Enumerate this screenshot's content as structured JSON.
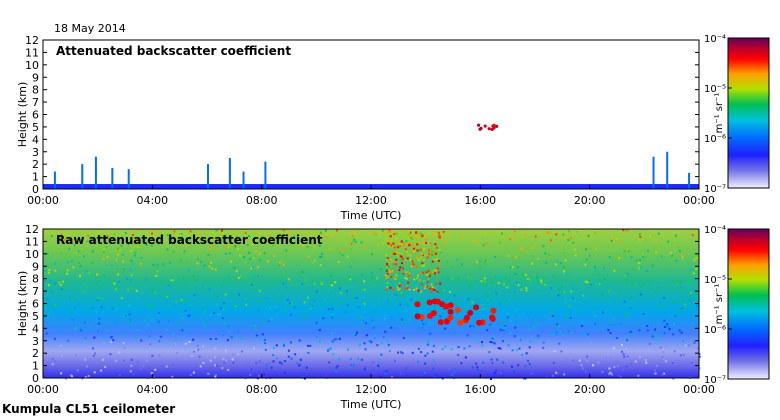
{
  "date": "18 May 2014",
  "footer": "Kumpula CL51 ceilometer",
  "chart_data": [
    {
      "type": "heatmap",
      "title": "Attenuated backscatter coefficient",
      "xlabel": "Time (UTC)",
      "ylabel": "Height (km)",
      "xticks": [
        "00:00",
        "04:00",
        "08:00",
        "12:00",
        "16:00",
        "20:00",
        "00:00"
      ],
      "xlim_hours": [
        0,
        24
      ],
      "yticks": [
        "0",
        "1",
        "2",
        "3",
        "4",
        "5",
        "6",
        "7",
        "8",
        "9",
        "10",
        "11",
        "12"
      ],
      "ylim_km": [
        0,
        12
      ],
      "colorbar": {
        "label": "m⁻¹ sr⁻¹",
        "ticks": [
          "10⁻⁷",
          "10⁻⁶",
          "10⁻⁵",
          "10⁻⁴"
        ],
        "range_log10": [
          -7,
          -4
        ]
      },
      "features": [
        {
          "name": "boundary layer",
          "start_h": 0,
          "end_h": 24,
          "top_km": 0.4,
          "level_log10": -6.3
        },
        {
          "name": "cloud",
          "start_h": 15.8,
          "end_h": 16.6,
          "bottom_km": 4.7,
          "top_km": 5.2,
          "level_log10": -4.3
        }
      ]
    },
    {
      "type": "heatmap",
      "title": "Raw attenuated backscatter coefficient",
      "xlabel": "Time (UTC)",
      "ylabel": "Height (km)",
      "xticks": [
        "00:00",
        "04:00",
        "08:00",
        "12:00",
        "16:00",
        "20:00",
        "00:00"
      ],
      "xlim_hours": [
        0,
        24
      ],
      "yticks": [
        "0",
        "1",
        "2",
        "3",
        "4",
        "5",
        "6",
        "7",
        "8",
        "9",
        "10",
        "11",
        "12"
      ],
      "ylim_km": [
        0,
        12
      ],
      "colorbar": {
        "label": "m⁻¹ sr⁻¹",
        "ticks": [
          "10⁻⁷",
          "10⁻⁶",
          "10⁻⁵",
          "10⁻⁴"
        ],
        "range_log10": [
          -7,
          -4
        ]
      },
      "features": [
        {
          "name": "cloud",
          "start_h": 13.6,
          "end_h": 16.6,
          "bottom_km": 4.3,
          "top_km": 6.2,
          "level_log10": -4.4
        },
        {
          "name": "upper noise",
          "start_h": 12.5,
          "end_h": 14.5,
          "bottom_km": 7,
          "top_km": 12,
          "level_log10": -4.6
        }
      ]
    }
  ],
  "colors": {
    "scale": [
      "#f0f0ff",
      "#5050e0",
      "#2020ff",
      "#00a0ff",
      "#00d060",
      "#d0e000",
      "#ff8000",
      "#ff0000",
      "#a00030",
      "#600060"
    ]
  }
}
